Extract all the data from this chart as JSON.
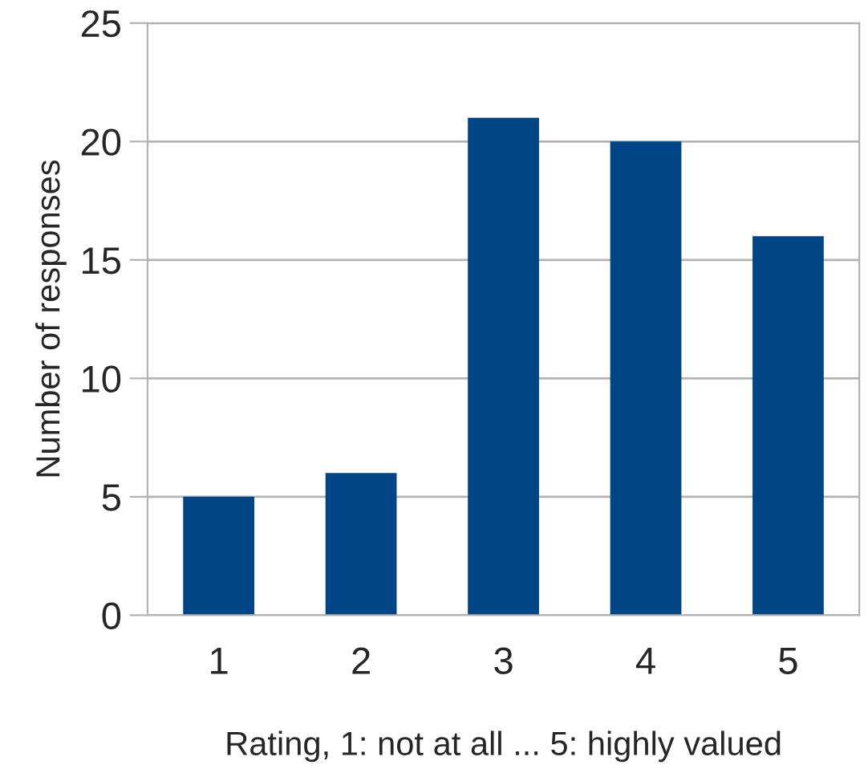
{
  "chart_data": {
    "type": "bar",
    "xlabel": "Rating, 1: not at all ... 5: highly valued",
    "ylabel": "Number of responses",
    "categories": [
      "1",
      "2",
      "3",
      "4",
      "5"
    ],
    "values": [
      5,
      6,
      21,
      20,
      16
    ],
    "color": "#004586",
    "ylim": [
      0,
      25
    ],
    "yticks": [
      0,
      5,
      10,
      15,
      20,
      25
    ],
    "grid": "y",
    "legend": false
  }
}
